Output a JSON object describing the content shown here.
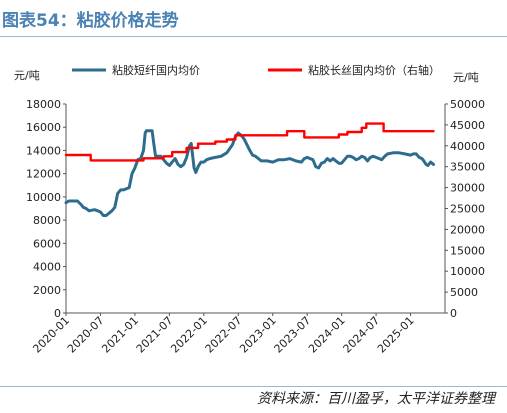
{
  "header": {
    "title": "图表54：粘胶价格走势"
  },
  "source": "资料来源：百川盈孚，太平洋证券整理",
  "colors": {
    "title": "#4A82B4",
    "staple": "#2E6C8E",
    "filament": "#FF0000",
    "rule": "#9DB7D3"
  },
  "chart_data": {
    "type": "line",
    "legend_position": "top",
    "grid": false,
    "y_left_unit": "元/吨",
    "y_right_unit": "元/吨",
    "y_left_lim": [
      0,
      18000
    ],
    "y_right_lim": [
      0,
      50000
    ],
    "y_left_ticks": [
      "0",
      "2000",
      "4000",
      "6000",
      "8000",
      "10000",
      "12000",
      "14000",
      "16000",
      "18000"
    ],
    "y_right_ticks": [
      "0",
      "5000",
      "10000",
      "15000",
      "20000",
      "25000",
      "30000",
      "35000",
      "40000",
      "45000",
      "50000"
    ],
    "x_lim": [
      0,
      66
    ],
    "x_ticks": [
      {
        "x": 0,
        "label": "2020-01"
      },
      {
        "x": 6,
        "label": "2020-07"
      },
      {
        "x": 12,
        "label": "2021-01"
      },
      {
        "x": 18,
        "label": "2021-07"
      },
      {
        "x": 24,
        "label": "2022-01"
      },
      {
        "x": 30,
        "label": "2022-07"
      },
      {
        "x": 36,
        "label": "2023-01"
      },
      {
        "x": 42,
        "label": "2023-07"
      },
      {
        "x": 48,
        "label": "2024-01"
      },
      {
        "x": 54,
        "label": "2024-07"
      },
      {
        "x": 60,
        "label": "2025-01"
      }
    ],
    "series": [
      {
        "name": "粘胶短纤国内均价",
        "axis": "left",
        "points": [
          [
            0,
            9500
          ],
          [
            0.5,
            9650
          ],
          [
            1,
            9650
          ],
          [
            2,
            9650
          ],
          [
            2.7,
            9300
          ],
          [
            3,
            9100
          ],
          [
            3.5,
            9000
          ],
          [
            4,
            8800
          ],
          [
            4.5,
            8850
          ],
          [
            5,
            8900
          ],
          [
            5.5,
            8800
          ],
          [
            6,
            8700
          ],
          [
            6.5,
            8400
          ],
          [
            7,
            8400
          ],
          [
            7.5,
            8600
          ],
          [
            8,
            8800
          ],
          [
            8.5,
            9100
          ],
          [
            9,
            10300
          ],
          [
            9.5,
            10600
          ],
          [
            10,
            10600
          ],
          [
            10.5,
            10700
          ],
          [
            11,
            10800
          ],
          [
            11.5,
            12000
          ],
          [
            12,
            12500
          ],
          [
            12.5,
            13200
          ],
          [
            13,
            13300
          ],
          [
            13.5,
            14000
          ],
          [
            13.8,
            15500
          ],
          [
            14,
            15700
          ],
          [
            14.5,
            15700
          ],
          [
            15,
            15700
          ],
          [
            15.3,
            14500
          ],
          [
            15.6,
            13500
          ],
          [
            16,
            13500
          ],
          [
            16.5,
            13500
          ],
          [
            17,
            13200
          ],
          [
            17.5,
            12900
          ],
          [
            18,
            12700
          ],
          [
            18.5,
            13000
          ],
          [
            19,
            13300
          ],
          [
            19.5,
            12800
          ],
          [
            20,
            12600
          ],
          [
            20.5,
            12800
          ],
          [
            21,
            13400
          ],
          [
            21.5,
            14400
          ],
          [
            21.8,
            14600
          ],
          [
            22,
            13800
          ],
          [
            22.3,
            12500
          ],
          [
            22.6,
            12100
          ],
          [
            23,
            12600
          ],
          [
            23.5,
            13000
          ],
          [
            24,
            13000
          ],
          [
            24.5,
            13200
          ],
          [
            25,
            13300
          ],
          [
            26,
            13400
          ],
          [
            27,
            13500
          ],
          [
            28,
            13800
          ],
          [
            29,
            14500
          ],
          [
            29.5,
            15200
          ],
          [
            30,
            15500
          ],
          [
            30.5,
            15300
          ],
          [
            31,
            15000
          ],
          [
            31.5,
            14500
          ],
          [
            32,
            14000
          ],
          [
            32.5,
            13600
          ],
          [
            33,
            13500
          ],
          [
            33.5,
            13300
          ],
          [
            34,
            13100
          ],
          [
            35,
            13100
          ],
          [
            36,
            13000
          ],
          [
            37,
            13200
          ],
          [
            38,
            13200
          ],
          [
            39,
            13300
          ],
          [
            40,
            13100
          ],
          [
            41,
            13000
          ],
          [
            41.5,
            13300
          ],
          [
            42,
            13400
          ],
          [
            42.5,
            13300
          ],
          [
            43,
            13200
          ],
          [
            43.5,
            12600
          ],
          [
            44,
            12500
          ],
          [
            44.5,
            12900
          ],
          [
            45,
            13000
          ],
          [
            45.5,
            13300
          ],
          [
            46,
            13100
          ],
          [
            46.5,
            13300
          ],
          [
            47,
            13100
          ],
          [
            47.5,
            12900
          ],
          [
            48,
            12900
          ],
          [
            48.5,
            13200
          ],
          [
            49,
            13500
          ],
          [
            49.5,
            13500
          ],
          [
            50,
            13400
          ],
          [
            50.5,
            13200
          ],
          [
            51,
            13300
          ],
          [
            51.5,
            13500
          ],
          [
            52,
            13400
          ],
          [
            52.5,
            13100
          ],
          [
            53,
            13400
          ],
          [
            53.5,
            13500
          ],
          [
            54,
            13400
          ],
          [
            55,
            13200
          ],
          [
            55.5,
            13500
          ],
          [
            56,
            13700
          ],
          [
            57,
            13800
          ],
          [
            58,
            13800
          ],
          [
            59,
            13700
          ],
          [
            60,
            13600
          ],
          [
            60.5,
            13700
          ],
          [
            61,
            13700
          ],
          [
            61.5,
            13400
          ],
          [
            62,
            13300
          ],
          [
            62.3,
            13100
          ],
          [
            62.7,
            12800
          ],
          [
            63,
            12700
          ],
          [
            63.5,
            13000
          ],
          [
            64,
            12800
          ]
        ]
      },
      {
        "name": "粘胶长丝国内均价（右轴）",
        "axis": "right",
        "points": [
          [
            0,
            37800
          ],
          [
            4.3,
            37800
          ],
          [
            4.3,
            36500
          ],
          [
            13.5,
            36500
          ],
          [
            13.5,
            37000
          ],
          [
            17,
            37000
          ],
          [
            17,
            37500
          ],
          [
            18.5,
            37500
          ],
          [
            18.5,
            38500
          ],
          [
            21,
            38500
          ],
          [
            21,
            39500
          ],
          [
            23,
            39500
          ],
          [
            23,
            40500
          ],
          [
            26,
            40500
          ],
          [
            26,
            41000
          ],
          [
            28,
            41000
          ],
          [
            28,
            41500
          ],
          [
            29.5,
            41500
          ],
          [
            29.5,
            42500
          ],
          [
            38.5,
            42500
          ],
          [
            38.5,
            43500
          ],
          [
            41.5,
            43500
          ],
          [
            41.5,
            42000
          ],
          [
            47.5,
            42000
          ],
          [
            47.5,
            42700
          ],
          [
            49,
            42700
          ],
          [
            49,
            43300
          ],
          [
            51.5,
            43300
          ],
          [
            51.5,
            44300
          ],
          [
            52.3,
            44300
          ],
          [
            52.3,
            45300
          ],
          [
            55.3,
            45300
          ],
          [
            55.3,
            43500
          ],
          [
            64,
            43500
          ]
        ]
      }
    ]
  }
}
